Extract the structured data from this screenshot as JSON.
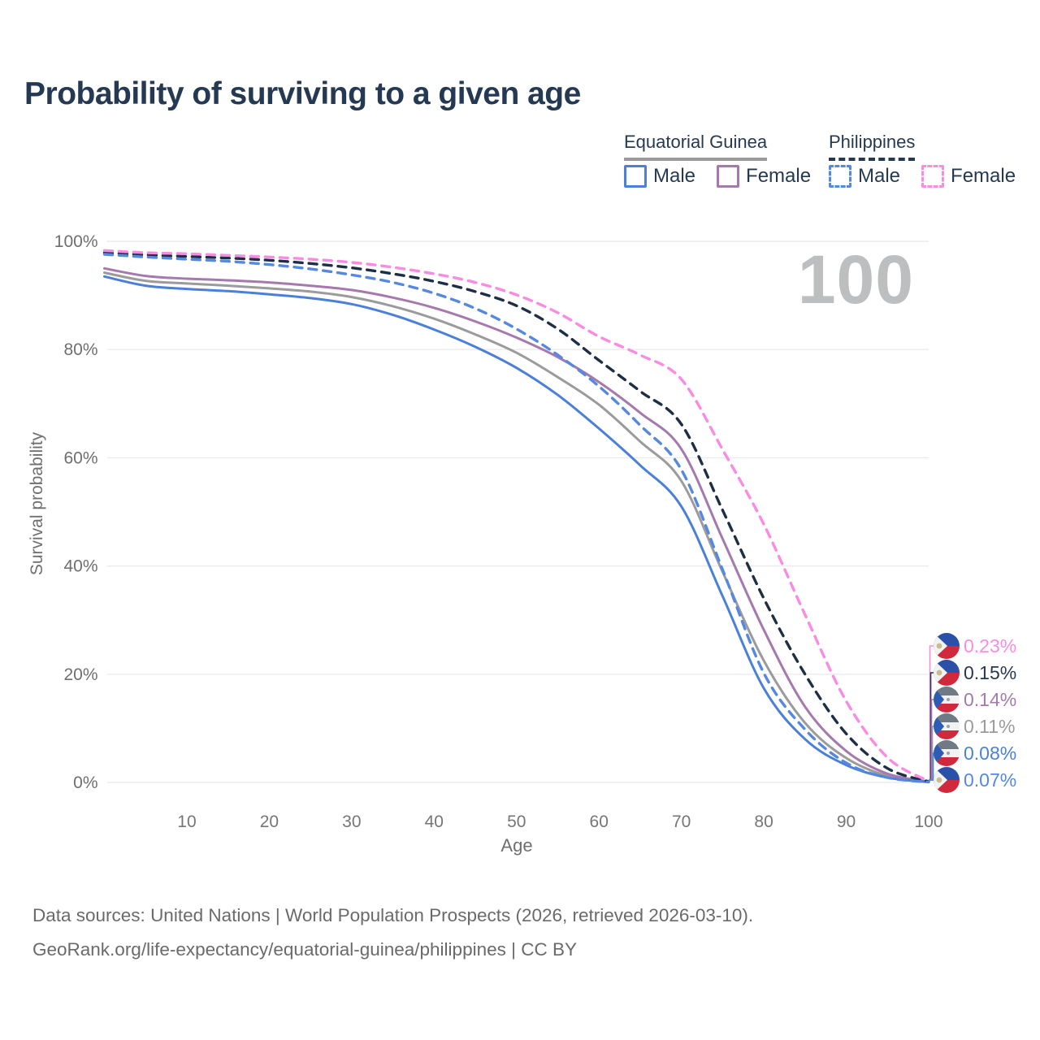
{
  "title": "Probability of surviving to a given age",
  "watermark": "100",
  "legend": {
    "groups": [
      {
        "country": "Equatorial Guinea",
        "line_style": "solid",
        "underline_color": "#9b9b9b",
        "items": [
          {
            "label": "Male",
            "color": "#4a80d9"
          },
          {
            "label": "Female",
            "color": "#a679ae"
          }
        ]
      },
      {
        "country": "Philippines",
        "line_style": "dashed",
        "underline_color": "#253a52",
        "items": [
          {
            "label": "Male",
            "color": "#5588e0"
          },
          {
            "label": "Female",
            "color": "#f98ce2"
          }
        ]
      }
    ]
  },
  "chart_data": {
    "type": "line",
    "title": "Probability of surviving to a given age",
    "xlabel": "Age",
    "ylabel": "Survival probability",
    "xlim": [
      0,
      100
    ],
    "ylim_percent": [
      0,
      100
    ],
    "x_ticks": [
      10,
      20,
      30,
      40,
      50,
      60,
      70,
      80,
      90,
      100
    ],
    "y_ticks_percent": [
      0,
      20,
      40,
      60,
      80,
      100
    ],
    "grid": "horizontal",
    "legend_position": "top-right",
    "ages": [
      0,
      5,
      10,
      15,
      20,
      25,
      30,
      35,
      40,
      45,
      50,
      55,
      60,
      65,
      70,
      75,
      80,
      85,
      90,
      95,
      100
    ],
    "series": [
      {
        "name": "Equatorial Guinea — Both sexes",
        "country": "Equatorial Guinea",
        "sex": "Both",
        "style": "solid",
        "color": "#9b9b9b",
        "width": 3,
        "values": [
          94.2,
          92.7,
          92.2,
          91.8,
          91.3,
          90.7,
          89.7,
          88.0,
          85.7,
          82.8,
          79.4,
          74.9,
          69.8,
          63.0,
          55.7,
          38.9,
          22.5,
          11.0,
          4.5,
          1.2,
          0.11
        ]
      },
      {
        "name": "Equatorial Guinea — Female",
        "country": "Equatorial Guinea",
        "sex": "Female",
        "style": "solid",
        "color": "#a679ae",
        "width": 3,
        "values": [
          95.0,
          93.6,
          93.1,
          92.8,
          92.4,
          91.8,
          91.0,
          89.6,
          87.7,
          85.2,
          82.2,
          78.6,
          74.0,
          68.3,
          61.6,
          45.0,
          28.2,
          14.0,
          5.8,
          1.6,
          0.14
        ]
      },
      {
        "name": "Equatorial Guinea — Male",
        "country": "Equatorial Guinea",
        "sex": "Male",
        "style": "solid",
        "color": "#4a80d9",
        "width": 3,
        "values": [
          93.5,
          91.8,
          91.2,
          90.8,
          90.2,
          89.5,
          88.4,
          86.4,
          83.7,
          80.5,
          76.6,
          71.6,
          65.4,
          58.6,
          51.0,
          34.4,
          17.4,
          8.0,
          3.2,
          0.9,
          0.08
        ]
      },
      {
        "name": "Philippines — Both sexes",
        "country": "Philippines",
        "sex": "Both",
        "style": "dashed",
        "color": "#1d2f45",
        "width": 3.4,
        "values": [
          97.9,
          97.5,
          97.2,
          96.9,
          96.5,
          95.9,
          95.1,
          94.0,
          92.6,
          90.7,
          88.1,
          83.8,
          78.0,
          72.3,
          66.2,
          50.3,
          34.0,
          20.0,
          9.0,
          2.6,
          0.15
        ]
      },
      {
        "name": "Philippines — Male",
        "country": "Philippines",
        "sex": "Male",
        "style": "dashed",
        "color": "#5588e0",
        "width": 3.4,
        "values": [
          97.6,
          97.1,
          96.7,
          96.3,
          95.7,
          94.9,
          93.8,
          92.4,
          90.4,
          87.6,
          83.8,
          79.0,
          73.2,
          66.0,
          57.8,
          39.3,
          20.2,
          9.8,
          3.6,
          0.9,
          0.07
        ]
      },
      {
        "name": "Philippines — Female",
        "country": "Philippines",
        "sex": "Female",
        "style": "dashed",
        "color": "#f98ce2",
        "width": 3.4,
        "values": [
          98.3,
          97.9,
          97.7,
          97.4,
          97.1,
          96.7,
          96.1,
          95.2,
          94.0,
          92.4,
          90.1,
          86.8,
          82.4,
          79.0,
          74.5,
          61.5,
          47.7,
          31.0,
          15.0,
          4.6,
          0.23
        ]
      }
    ],
    "end_labels": [
      {
        "value": "0.23%",
        "series": "Philippines — Female",
        "flag": "philippines",
        "color": "#f98ce2"
      },
      {
        "value": "0.15%",
        "series": "Philippines — Both sexes",
        "flag": "philippines",
        "color": "#253a52"
      },
      {
        "value": "0.14%",
        "series": "Equatorial Guinea — Female",
        "flag": "equatorial-guinea",
        "color": "#a679ae"
      },
      {
        "value": "0.11%",
        "series": "Equatorial Guinea — Both sexes",
        "flag": "equatorial-guinea",
        "color": "#9b9b9b"
      },
      {
        "value": "0.08%",
        "series": "Equatorial Guinea — Male",
        "flag": "equatorial-guinea",
        "color": "#4a80d9"
      },
      {
        "value": "0.07%",
        "series": "Philippines — Male",
        "flag": "philippines",
        "color": "#5588e0"
      }
    ]
  },
  "footer": {
    "line1": "Data sources: United Nations | World Population Prospects (2026, retrieved 2026-03-10).",
    "line2": "GeoRank.org/life-expectancy/equatorial-guinea/philippines | CC BY"
  }
}
